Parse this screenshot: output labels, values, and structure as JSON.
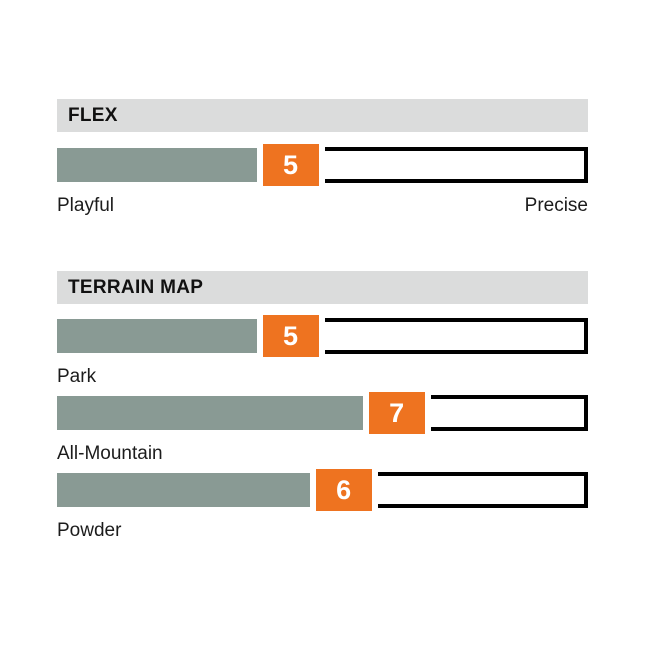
{
  "scale": {
    "min": 0,
    "max": 10
  },
  "colors": {
    "accent_orange": "#ee7320",
    "bar_fill": "#899a94",
    "header_bg": "#dbdcdc",
    "border_black": "#000000",
    "text": "#1c1c1c"
  },
  "sections": [
    {
      "title": "FLEX",
      "bars": [
        {
          "value": 5,
          "left_label": "Playful",
          "right_label": "Precise"
        }
      ]
    },
    {
      "title": "TERRAIN MAP",
      "bars": [
        {
          "value": 5,
          "label": "Park"
        },
        {
          "value": 7,
          "label": "All-Mountain"
        },
        {
          "value": 6,
          "label": "Powder"
        }
      ]
    }
  ],
  "chart_data": [
    {
      "type": "bar",
      "title": "FLEX",
      "categories": [
        "Flex"
      ],
      "values": [
        5
      ],
      "xlabel": "",
      "ylabel": "",
      "xlim": [
        0,
        10
      ],
      "annotations": [
        "Playful (left end)",
        "Precise (right end)"
      ],
      "legend_position": "none",
      "grid": false
    },
    {
      "type": "bar",
      "title": "TERRAIN MAP",
      "categories": [
        "Park",
        "All-Mountain",
        "Powder"
      ],
      "values": [
        5,
        7,
        6
      ],
      "xlabel": "",
      "ylabel": "",
      "xlim": [
        0,
        10
      ],
      "legend_position": "none",
      "grid": false
    }
  ]
}
